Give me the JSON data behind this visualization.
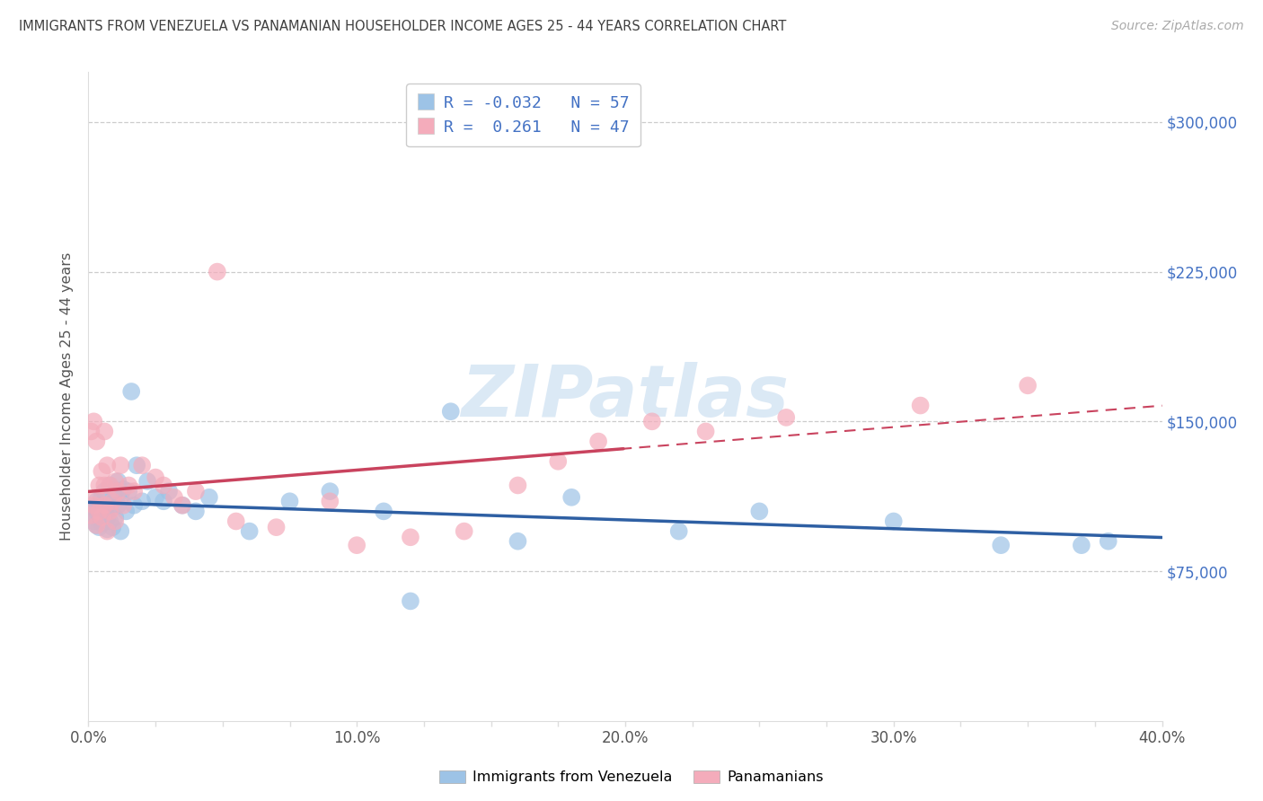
{
  "title": "IMMIGRANTS FROM VENEZUELA VS PANAMANIAN HOUSEHOLDER INCOME AGES 25 - 44 YEARS CORRELATION CHART",
  "source": "Source: ZipAtlas.com",
  "ylabel": "Householder Income Ages 25 - 44 years",
  "xlim": [
    0.0,
    0.4
  ],
  "ylim": [
    0,
    325000
  ],
  "xtick_labels": [
    "0.0%",
    "",
    "",
    "",
    "10.0%",
    "",
    "",
    "",
    "20.0%",
    "",
    "",
    "",
    "30.0%",
    "",
    "",
    "",
    "40.0%"
  ],
  "xtick_values": [
    0.0,
    0.025,
    0.05,
    0.075,
    0.1,
    0.125,
    0.15,
    0.175,
    0.2,
    0.225,
    0.25,
    0.275,
    0.3,
    0.325,
    0.35,
    0.375,
    0.4
  ],
  "ytick_labels": [
    "$75,000",
    "$150,000",
    "$225,000",
    "$300,000"
  ],
  "ytick_values": [
    75000,
    150000,
    225000,
    300000
  ],
  "watermark": "ZIPatlas",
  "color_blue": "#9DC3E6",
  "color_pink": "#F4ACBB",
  "color_blue_line": "#2E5FA3",
  "color_pink_line": "#C9435E",
  "color_title": "#404040",
  "color_axis_right": "#4472C4",
  "color_source": "#AAAAAA",
  "blue_x": [
    0.001,
    0.002,
    0.002,
    0.003,
    0.003,
    0.003,
    0.004,
    0.004,
    0.004,
    0.005,
    0.005,
    0.005,
    0.006,
    0.006,
    0.006,
    0.007,
    0.007,
    0.007,
    0.008,
    0.008,
    0.008,
    0.009,
    0.009,
    0.01,
    0.01,
    0.011,
    0.011,
    0.012,
    0.012,
    0.013,
    0.014,
    0.015,
    0.016,
    0.017,
    0.018,
    0.02,
    0.022,
    0.025,
    0.028,
    0.03,
    0.035,
    0.04,
    0.045,
    0.06,
    0.075,
    0.09,
    0.11,
    0.12,
    0.135,
    0.16,
    0.18,
    0.22,
    0.25,
    0.3,
    0.34,
    0.37,
    0.38
  ],
  "blue_y": [
    103000,
    100000,
    107000,
    98000,
    105000,
    110000,
    97000,
    104000,
    108000,
    99000,
    106000,
    112000,
    100000,
    105000,
    115000,
    96000,
    102000,
    108000,
    100000,
    106000,
    118000,
    97000,
    110000,
    102000,
    115000,
    108000,
    120000,
    95000,
    112000,
    116000,
    105000,
    115000,
    165000,
    108000,
    128000,
    110000,
    120000,
    112000,
    110000,
    115000,
    108000,
    105000,
    112000,
    95000,
    110000,
    115000,
    105000,
    60000,
    155000,
    90000,
    112000,
    95000,
    105000,
    100000,
    88000,
    88000,
    90000
  ],
  "pink_x": [
    0.001,
    0.001,
    0.002,
    0.002,
    0.003,
    0.003,
    0.003,
    0.004,
    0.004,
    0.005,
    0.005,
    0.006,
    0.006,
    0.006,
    0.007,
    0.007,
    0.008,
    0.008,
    0.009,
    0.01,
    0.01,
    0.011,
    0.012,
    0.013,
    0.015,
    0.017,
    0.02,
    0.025,
    0.028,
    0.032,
    0.035,
    0.04,
    0.048,
    0.055,
    0.07,
    0.09,
    0.1,
    0.12,
    0.14,
    0.16,
    0.175,
    0.19,
    0.21,
    0.23,
    0.26,
    0.31,
    0.35
  ],
  "pink_y": [
    103000,
    145000,
    108000,
    150000,
    98000,
    112000,
    140000,
    105000,
    118000,
    102000,
    125000,
    108000,
    118000,
    145000,
    95000,
    128000,
    105000,
    118000,
    110000,
    100000,
    120000,
    115000,
    128000,
    108000,
    118000,
    115000,
    128000,
    122000,
    118000,
    112000,
    108000,
    115000,
    225000,
    100000,
    97000,
    110000,
    88000,
    92000,
    95000,
    118000,
    130000,
    140000,
    150000,
    145000,
    152000,
    158000,
    168000
  ]
}
